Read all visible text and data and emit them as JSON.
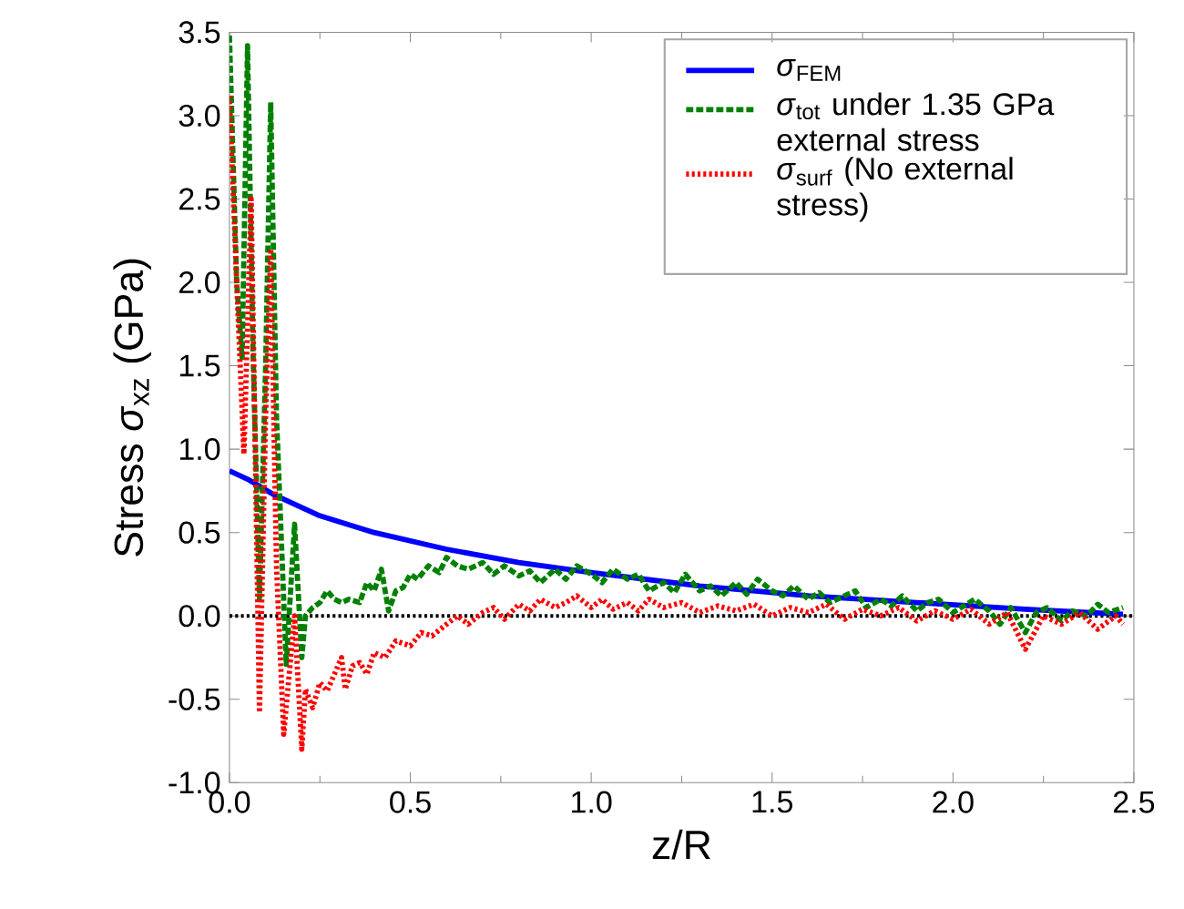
{
  "chart_data": {
    "type": "line",
    "xlabel": "z/R",
    "ylabel": "Stress *σ*$_{xz}$ (GPa)",
    "xlim": [
      0,
      2.5
    ],
    "ylim": [
      -1.0,
      3.5
    ],
    "xticks": [
      {
        "value": 0,
        "label": "0.0"
      },
      {
        "value": 0.5,
        "label": "0.5"
      },
      {
        "value": 1,
        "label": "1.0"
      },
      {
        "value": 1.5,
        "label": "1.5"
      },
      {
        "value": 2,
        "label": "2.0"
      },
      {
        "value": 2.5,
        "label": "2.5"
      }
    ],
    "yticks": [
      {
        "value": -1,
        "label": "-1.0"
      },
      {
        "value": -0.5,
        "label": "-0.5"
      },
      {
        "value": 0,
        "label": "0.0"
      },
      {
        "value": 0.5,
        "label": "0.5"
      },
      {
        "value": 1,
        "label": "1.0"
      },
      {
        "value": 1.5,
        "label": "1.5"
      },
      {
        "value": 2,
        "label": "2.0"
      },
      {
        "value": 2.5,
        "label": "2.5"
      },
      {
        "value": 3,
        "label": "3.0"
      },
      {
        "value": 3.5,
        "label": "3.5"
      }
    ],
    "grid": false,
    "legend": "top right",
    "ref_lines": [
      {
        "axis": "y",
        "value": 0,
        "color": "#000000",
        "line_style": "dotted"
      }
    ],
    "series": [
      {
        "name": "*σ*$_{FEM}$",
        "color": "#0000ff",
        "line_style": "solid",
        "x": [
          0,
          0.05,
          0.12,
          0.25,
          0.4,
          0.6,
          0.8,
          1.0,
          1.3,
          1.6,
          1.9,
          2.2,
          2.47
        ],
        "values": [
          0.87,
          0.82,
          0.73,
          0.6,
          0.5,
          0.4,
          0.32,
          0.26,
          0.18,
          0.12,
          0.08,
          0.04,
          0.01
        ]
      },
      {
        "name": "*σ*$_{tot}$ under 1.35 GPa external stress",
        "color": "#008000",
        "line_style": "dashed",
        "x": [
          0,
          0.02,
          0.035,
          0.05,
          0.065,
          0.083,
          0.1,
          0.114,
          0.13,
          0.157,
          0.18,
          0.2,
          0.21,
          0.23,
          0.25,
          0.27,
          0.29,
          0.31,
          0.33,
          0.36,
          0.38,
          0.4,
          0.42,
          0.44,
          0.46,
          0.48,
          0.5,
          0.52,
          0.55,
          0.58,
          0.6,
          0.63,
          0.66,
          0.7,
          0.73,
          0.76,
          0.8,
          0.83,
          0.86,
          0.9,
          0.93,
          0.96,
          1.0,
          1.03,
          1.06,
          1.1,
          1.13,
          1.16,
          1.2,
          1.23,
          1.26,
          1.3,
          1.33,
          1.36,
          1.4,
          1.43,
          1.46,
          1.5,
          1.53,
          1.56,
          1.6,
          1.63,
          1.66,
          1.7,
          1.73,
          1.76,
          1.8,
          1.83,
          1.86,
          1.9,
          1.93,
          1.96,
          2.0,
          2.03,
          2.06,
          2.1,
          2.13,
          2.16,
          2.2,
          2.23,
          2.26,
          2.3,
          2.33,
          2.37,
          2.4,
          2.43,
          2.47
        ],
        "values": [
          3.48,
          2.0,
          1.55,
          3.42,
          1.6,
          0.1,
          1.5,
          3.08,
          1.2,
          -0.29,
          0.55,
          -0.25,
          0.0,
          0.05,
          0.08,
          0.15,
          0.1,
          0.08,
          0.1,
          0.08,
          0.2,
          0.15,
          0.28,
          0.03,
          0.15,
          0.17,
          0.25,
          0.22,
          0.3,
          0.26,
          0.35,
          0.3,
          0.28,
          0.32,
          0.25,
          0.3,
          0.24,
          0.27,
          0.2,
          0.28,
          0.22,
          0.3,
          0.25,
          0.2,
          0.28,
          0.22,
          0.25,
          0.15,
          0.2,
          0.14,
          0.25,
          0.15,
          0.18,
          0.12,
          0.2,
          0.13,
          0.22,
          0.15,
          0.12,
          0.18,
          0.1,
          0.14,
          0.08,
          0.12,
          0.15,
          0.05,
          0.1,
          0.06,
          0.12,
          0.03,
          0.08,
          0.1,
          0.02,
          0.06,
          0.1,
          0.03,
          -0.05,
          0.05,
          -0.1,
          0.02,
          0.05,
          -0.03,
          0.03,
          0.0,
          0.07,
          0.02,
          0.05
        ]
      },
      {
        "name": "*σ*$_{surf}$ (No external stress)",
        "color": "#ff0000",
        "line_style": "dotted",
        "x": [
          0,
          0.02,
          0.04,
          0.06,
          0.083,
          0.1,
          0.114,
          0.13,
          0.15,
          0.18,
          0.2,
          0.21,
          0.23,
          0.25,
          0.27,
          0.29,
          0.31,
          0.32,
          0.34,
          0.36,
          0.38,
          0.4,
          0.43,
          0.46,
          0.5,
          0.53,
          0.56,
          0.6,
          0.63,
          0.66,
          0.7,
          0.73,
          0.76,
          0.8,
          0.83,
          0.86,
          0.9,
          0.93,
          0.96,
          1.0,
          1.03,
          1.06,
          1.1,
          1.13,
          1.16,
          1.2,
          1.25,
          1.3,
          1.35,
          1.4,
          1.45,
          1.5,
          1.55,
          1.6,
          1.65,
          1.7,
          1.75,
          1.8,
          1.85,
          1.9,
          1.95,
          2.0,
          2.05,
          2.1,
          2.15,
          2.2,
          2.25,
          2.3,
          2.35,
          2.4,
          2.45,
          2.47
        ],
        "values": [
          3.12,
          2.0,
          0.97,
          2.5,
          -0.58,
          1.2,
          2.2,
          0.3,
          -0.71,
          0.0,
          -0.8,
          -0.44,
          -0.55,
          -0.4,
          -0.45,
          -0.35,
          -0.25,
          -0.44,
          -0.3,
          -0.28,
          -0.35,
          -0.22,
          -0.25,
          -0.15,
          -0.18,
          -0.1,
          -0.12,
          -0.05,
          0.0,
          -0.05,
          0.02,
          0.05,
          -0.02,
          0.07,
          0.03,
          0.1,
          0.05,
          0.08,
          0.12,
          0.05,
          0.1,
          0.04,
          0.08,
          0.03,
          0.1,
          0.05,
          0.08,
          0.02,
          0.06,
          0.03,
          0.07,
          0.0,
          0.05,
          0.02,
          0.07,
          -0.02,
          0.04,
          0.0,
          0.05,
          -0.03,
          0.03,
          -0.02,
          0.04,
          -0.05,
          0.02,
          -0.2,
          0.0,
          -0.05,
          0.02,
          -0.08,
          0.0,
          -0.05
        ]
      }
    ]
  }
}
